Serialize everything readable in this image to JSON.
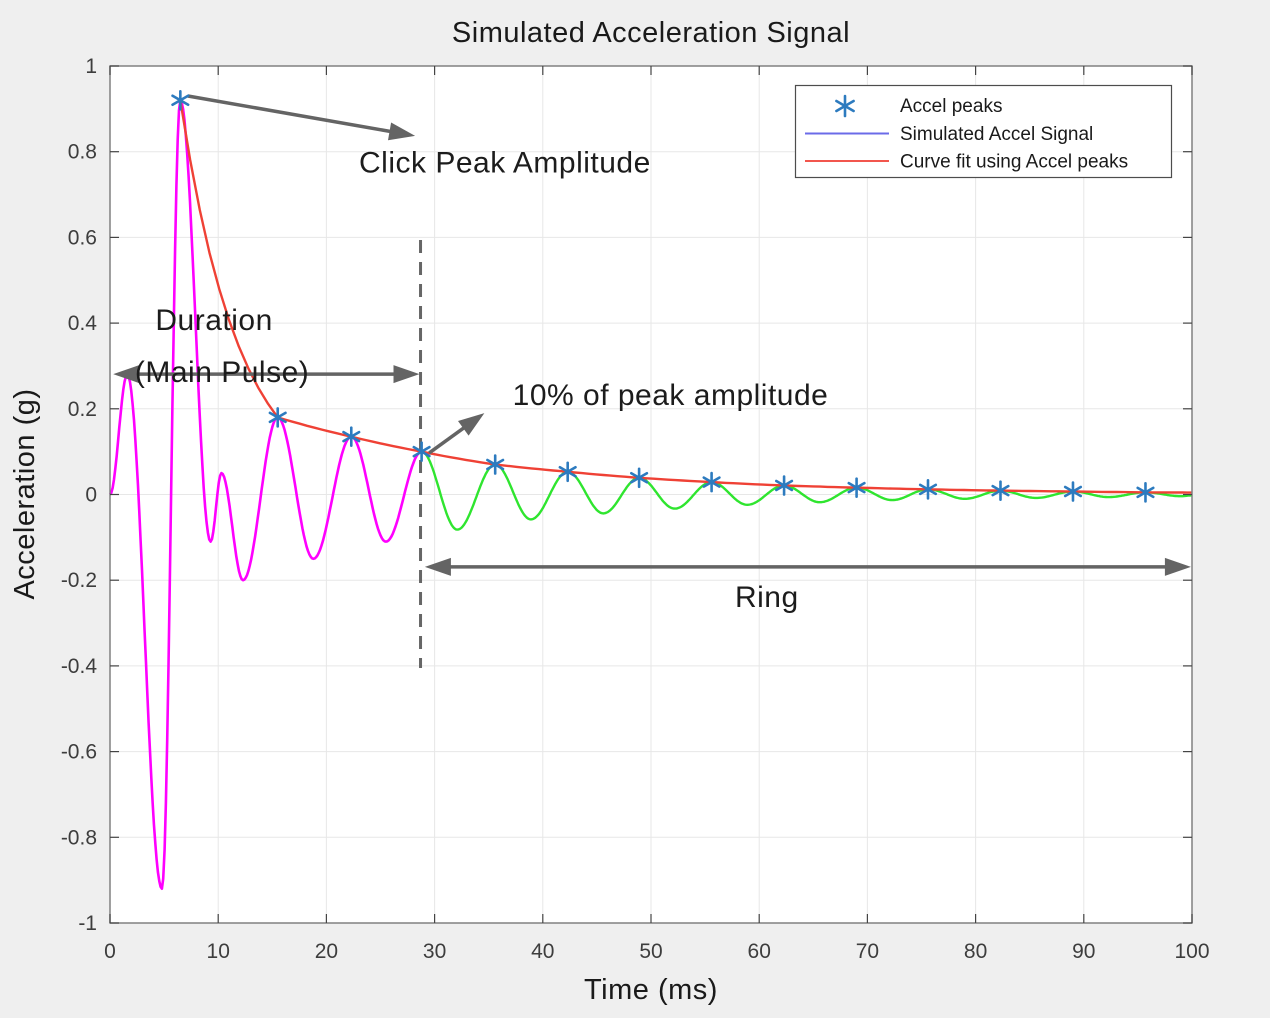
{
  "chart_data": {
    "type": "line",
    "title": "Simulated Acceleration Signal",
    "xlabel": "Time (ms)",
    "ylabel": "Acceleration (g)",
    "xlim": [
      0,
      100
    ],
    "ylim": [
      -1,
      1
    ],
    "grid": true,
    "x_ticks": [
      0,
      10,
      20,
      30,
      40,
      50,
      60,
      70,
      80,
      90,
      100
    ],
    "x_tick_labels": [
      "0",
      "10",
      "20",
      "30",
      "40",
      "50",
      "60",
      "70",
      "80",
      "90",
      "100"
    ],
    "y_ticks": [
      -1,
      -0.8,
      -0.6,
      -0.4,
      -0.2,
      0,
      0.2,
      0.4,
      0.6,
      0.8,
      1
    ],
    "y_tick_labels": [
      "-1",
      "-0.8",
      "-0.6",
      "-0.4",
      "-0.2",
      "0",
      "0.2",
      "0.4",
      "0.6",
      "0.8",
      "1"
    ],
    "colors": {
      "main_pulse": "#ff00ff",
      "ring": "#2fe52f",
      "fit": "#ef4135",
      "peaks": "#2d7bbf",
      "annotation_arrow": "#646464",
      "dashed_line": "#666666",
      "grid": "#e7e7e7",
      "axis": "#808080",
      "tick": "#444444",
      "background": "#efefef",
      "plot_background": "#ffffff"
    },
    "signal": {
      "name": "Simulated Accel Signal",
      "split_time_ms": 28.8,
      "segment_colors": [
        {
          "range_ms": [
            0,
            28.8
          ],
          "color": "#ff00ff"
        },
        {
          "range_ms": [
            28.8,
            100
          ],
          "color": "#2fe52f"
        }
      ],
      "extrema": [
        [
          0,
          0
        ],
        [
          1.6,
          0.28
        ],
        [
          4.8,
          -0.92
        ],
        [
          6.5,
          0.92
        ],
        [
          9.3,
          -0.11
        ],
        [
          10.3,
          0.05
        ],
        [
          12.3,
          -0.2
        ],
        [
          15.5,
          0.18
        ],
        [
          18.8,
          -0.15
        ],
        [
          22.3,
          0.135
        ],
        [
          25.5,
          -0.11
        ],
        [
          28.8,
          0.1
        ],
        [
          32.1,
          -0.082
        ],
        [
          35.6,
          0.07
        ],
        [
          38.9,
          -0.058
        ],
        [
          42.3,
          0.053
        ],
        [
          45.6,
          -0.044
        ],
        [
          48.9,
          0.039
        ],
        [
          52.2,
          -0.033
        ],
        [
          55.6,
          0.029
        ],
        [
          58.9,
          -0.024
        ],
        [
          62.3,
          0.021
        ],
        [
          65.6,
          -0.018
        ],
        [
          69,
          0.016
        ],
        [
          72.3,
          -0.013
        ],
        [
          75.6,
          0.012
        ],
        [
          79,
          -0.01
        ],
        [
          82.3,
          0.009
        ],
        [
          85.6,
          -0.008
        ],
        [
          89,
          0.007
        ],
        [
          92.3,
          -0.006
        ],
        [
          95.7,
          0.005
        ],
        [
          99,
          -0.004
        ],
        [
          100,
          -0.002
        ]
      ]
    },
    "peaks": {
      "name": "Accel peaks",
      "marker": "asterisk",
      "points": [
        [
          6.5,
          0.92
        ],
        [
          15.5,
          0.18
        ],
        [
          22.3,
          0.135
        ],
        [
          28.8,
          0.1
        ],
        [
          35.6,
          0.07
        ],
        [
          42.3,
          0.053
        ],
        [
          48.9,
          0.039
        ],
        [
          55.6,
          0.029
        ],
        [
          62.3,
          0.021
        ],
        [
          69,
          0.016
        ],
        [
          75.6,
          0.012
        ],
        [
          82.3,
          0.009
        ],
        [
          89,
          0.007
        ],
        [
          95.7,
          0.005
        ]
      ]
    },
    "fit_curve": {
      "name": "Curve fit using Accel peaks",
      "points": [
        [
          6.5,
          0.92
        ],
        [
          15.5,
          0.18
        ],
        [
          22.3,
          0.135
        ],
        [
          28.8,
          0.1
        ],
        [
          35.6,
          0.07
        ],
        [
          42.3,
          0.053
        ],
        [
          48.9,
          0.039
        ],
        [
          55.6,
          0.029
        ],
        [
          62.3,
          0.021
        ],
        [
          69,
          0.016
        ],
        [
          75.6,
          0.012
        ],
        [
          82.3,
          0.009
        ],
        [
          89,
          0.007
        ],
        [
          95.7,
          0.005
        ],
        [
          100,
          0.0045
        ]
      ]
    },
    "legend": {
      "position": "top-right",
      "items": [
        {
          "label": "Accel peaks",
          "symbol": "asterisk",
          "color": "#2d7bbf"
        },
        {
          "label": "Simulated Accel Signal",
          "symbol": "line",
          "color": "#6b6be8"
        },
        {
          "label": "Curve fit using Accel peaks",
          "symbol": "line",
          "color": "#f2564d"
        }
      ]
    },
    "annotations": {
      "click_peak": {
        "text": "Click Peak Amplitude",
        "text_pos": [
          36.5,
          0.752
        ],
        "text_anchor": "middle",
        "arrow": {
          "from": [
            7.2,
            0.93
          ],
          "to": [
            28.2,
            0.837
          ],
          "double": false
        }
      },
      "duration": {
        "lines": [
          {
            "text": "Duration",
            "pos": [
              4.2,
              0.384
            ]
          },
          {
            "text": "(Main Pulse)",
            "pos": [
              2.3,
              0.262
            ]
          }
        ],
        "text_anchor": "start",
        "arrow": {
          "from": [
            0.3,
            0.281
          ],
          "to": [
            28.6,
            0.281
          ],
          "double": true
        }
      },
      "ten_percent": {
        "text": "10% of peak amplitude",
        "text_pos": [
          51.8,
          0.209
        ],
        "text_anchor": "middle",
        "arrow": {
          "from": [
            29.5,
            0.097
          ],
          "to": [
            34.6,
            0.19
          ],
          "double": false
        }
      },
      "ring": {
        "text": "Ring",
        "text_pos": [
          60.7,
          -0.262
        ],
        "text_anchor": "middle",
        "arrow": {
          "from": [
            29.1,
            -0.169
          ],
          "to": [
            99.9,
            -0.169
          ],
          "double": true
        }
      },
      "threshold_line": {
        "style": "dashed",
        "x_ms": 28.7,
        "g_from": 0.594,
        "g_to": -0.405
      }
    }
  }
}
